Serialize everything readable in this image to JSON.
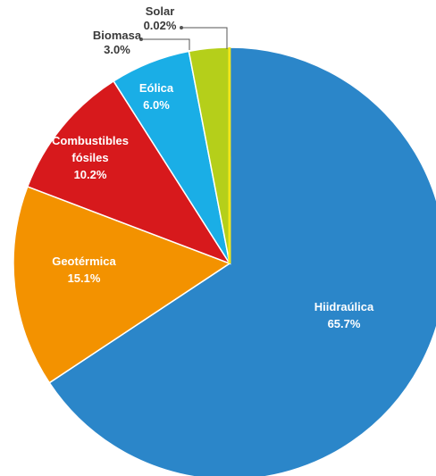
{
  "chart_data": {
    "type": "pie",
    "slices": [
      {
        "name": "Hiidraúlica",
        "lines": [
          "Hiidraúlica"
        ],
        "value": 65.7,
        "label": "65.7%",
        "color": "#2b86c9",
        "label_inside": true
      },
      {
        "name": "Geotérmica",
        "lines": [
          "Geotérmica"
        ],
        "value": 15.1,
        "label": "15.1%",
        "color": "#f39200",
        "label_inside": true
      },
      {
        "name": "Combustibles fósiles",
        "lines": [
          "Combustibles",
          "fósiles"
        ],
        "value": 10.2,
        "label": "10.2%",
        "color": "#d7191c",
        "label_inside": true
      },
      {
        "name": "Eólica",
        "lines": [
          "Eólica"
        ],
        "value": 6.0,
        "label": "6.0%",
        "color": "#1aaee6",
        "label_inside": true
      },
      {
        "name": "Biomasa",
        "lines": [
          "Biomasa"
        ],
        "value": 3.0,
        "label": "3.0%",
        "color": "#b5cf1a",
        "label_inside": false
      },
      {
        "name": "Solar",
        "lines": [
          "Solar"
        ],
        "value": 0.02,
        "label": "0.02%",
        "color": "#f1e51c",
        "label_inside": false
      }
    ],
    "start_angle": "12 o'clock",
    "direction": "clockwise"
  }
}
